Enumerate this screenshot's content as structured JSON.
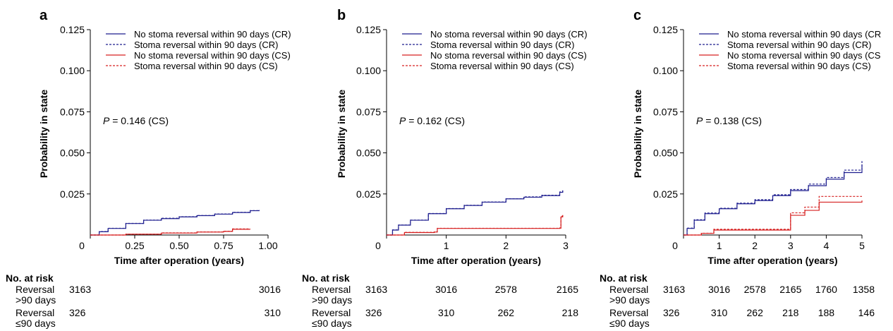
{
  "colors": {
    "cr": "#1f1f8f",
    "cs": "#d62020"
  },
  "risk_table": {
    "header": "No. at risk",
    "row1_label": [
      "Reversal",
      ">90 days"
    ],
    "row2_label": [
      "Reversal",
      "≤90 days"
    ]
  },
  "chart_data": [
    {
      "type": "line",
      "panel_label": "a",
      "xlabel": "Time after operation (years)",
      "ylabel": "Probability in state",
      "xlim": [
        0,
        1.0
      ],
      "ylim": [
        0,
        0.125
      ],
      "xticks": [
        0,
        0.25,
        0.5,
        0.75,
        1.0
      ],
      "xtick_labels": [
        "0",
        "0.25",
        "0.50",
        "0.75",
        "1.00"
      ],
      "yticks": [
        0.025,
        0.05,
        0.075,
        0.1,
        0.125
      ],
      "ytick_labels": [
        "0.025",
        "0.050",
        "0.075",
        "0.100",
        "0.125"
      ],
      "annotation": {
        "p": "P",
        "text": " = 0.146 (CS)"
      },
      "legend_position": "top",
      "series": [
        {
          "name": "No stoma reversal within 90 days (CR)",
          "color": "#1f1f8f",
          "dash": "solid",
          "x": [
            0,
            0.05,
            0.1,
            0.2,
            0.3,
            0.4,
            0.5,
            0.6,
            0.7,
            0.8,
            0.9,
            0.95
          ],
          "y": [
            0,
            0.002,
            0.004,
            0.007,
            0.009,
            0.01,
            0.011,
            0.0118,
            0.0127,
            0.0137,
            0.0148,
            0.0152
          ]
        },
        {
          "name": "Stoma reversal within 90 days (CR)",
          "color": "#1f1f8f",
          "dash": "dashed",
          "x": [
            0,
            0.05,
            0.1,
            0.2,
            0.3,
            0.4,
            0.5,
            0.6,
            0.7,
            0.8,
            0.9,
            0.95
          ],
          "y": [
            0,
            0.0021,
            0.0041,
            0.0071,
            0.0091,
            0.0102,
            0.0111,
            0.0119,
            0.0128,
            0.0138,
            0.0149,
            0.0153
          ]
        },
        {
          "name": "No stoma reversal within 90 days (CS)",
          "color": "#d62020",
          "dash": "solid",
          "x": [
            0,
            0.2,
            0.4,
            0.6,
            0.75,
            0.8,
            0.9
          ],
          "y": [
            0,
            0.0005,
            0.0012,
            0.0018,
            0.0022,
            0.0035,
            0.0035
          ]
        },
        {
          "name": "Stoma reversal within 90 days (CS)",
          "color": "#d62020",
          "dash": "dashed",
          "x": [
            0,
            0.2,
            0.4,
            0.6,
            0.75,
            0.8,
            0.9
          ],
          "y": [
            0,
            0.0005,
            0.0013,
            0.0019,
            0.0023,
            0.0037,
            0.0037
          ]
        }
      ],
      "risk": {
        "times": [
          0,
          1.0
        ],
        "row1": [
          "3163",
          "3016"
        ],
        "row2": [
          "326",
          "310"
        ]
      }
    },
    {
      "type": "line",
      "panel_label": "b",
      "xlabel": "Time after operation (years)",
      "ylabel": "Probability in state",
      "xlim": [
        0,
        3
      ],
      "ylim": [
        0,
        0.125
      ],
      "xticks": [
        0,
        1,
        2,
        3
      ],
      "xtick_labels": [
        "0",
        "1",
        "2",
        "3"
      ],
      "yticks": [
        0.025,
        0.05,
        0.075,
        0.1,
        0.125
      ],
      "ytick_labels": [
        "0.025",
        "0.050",
        "0.075",
        "0.100",
        "0.125"
      ],
      "annotation": {
        "p": "P",
        "text": " = 0.162 (CS)"
      },
      "legend_position": "top",
      "series": [
        {
          "name": "No stoma reversal within 90 days (CR)",
          "color": "#1f1f8f",
          "dash": "solid",
          "x": [
            0,
            0.1,
            0.2,
            0.4,
            0.7,
            1.0,
            1.3,
            1.6,
            2.0,
            2.3,
            2.6,
            2.9,
            2.95
          ],
          "y": [
            0,
            0.003,
            0.006,
            0.009,
            0.013,
            0.016,
            0.018,
            0.02,
            0.022,
            0.023,
            0.024,
            0.026,
            0.027
          ]
        },
        {
          "name": "Stoma reversal within 90 days (CR)",
          "color": "#1f1f8f",
          "dash": "dashed",
          "x": [
            0,
            0.1,
            0.2,
            0.4,
            0.7,
            1.0,
            1.3,
            1.6,
            2.0,
            2.3,
            2.6,
            2.9,
            2.95
          ],
          "y": [
            0,
            0.0031,
            0.0061,
            0.0091,
            0.0131,
            0.0161,
            0.0181,
            0.0201,
            0.0221,
            0.0232,
            0.0242,
            0.0262,
            0.0272
          ]
        },
        {
          "name": "No stoma reversal within 90 days (CS)",
          "color": "#d62020",
          "dash": "solid",
          "x": [
            0,
            0.3,
            0.8,
            0.85,
            2.5,
            2.9,
            2.92,
            2.95
          ],
          "y": [
            0,
            0.0015,
            0.0018,
            0.004,
            0.004,
            0.0042,
            0.011,
            0.012
          ]
        },
        {
          "name": "Stoma reversal within 90 days (CS)",
          "color": "#d62020",
          "dash": "dashed",
          "x": [
            0,
            0.3,
            0.8,
            0.85,
            2.5,
            2.9,
            2.92,
            2.95
          ],
          "y": [
            0,
            0.0016,
            0.0019,
            0.0041,
            0.0041,
            0.0043,
            0.0115,
            0.0125
          ]
        }
      ],
      "risk": {
        "times": [
          0,
          1,
          2,
          3
        ],
        "row1": [
          "3163",
          "3016",
          "2578",
          "2165"
        ],
        "row2": [
          "326",
          "310",
          "262",
          "218"
        ]
      }
    },
    {
      "type": "line",
      "panel_label": "c",
      "xlabel": "Time after operation (years)",
      "ylabel": "Probability in state",
      "xlim": [
        0,
        5
      ],
      "ylim": [
        0,
        0.125
      ],
      "xticks": [
        0,
        1,
        2,
        3,
        4,
        5
      ],
      "xtick_labels": [
        "0",
        "1",
        "2",
        "3",
        "4",
        "5"
      ],
      "yticks": [
        0.025,
        0.05,
        0.075,
        0.1,
        0.125
      ],
      "ytick_labels": [
        "0.025",
        "0.050",
        "0.075",
        "0.100",
        "0.125"
      ],
      "annotation": {
        "p": "P",
        "text": " = 0.138 (CS)"
      },
      "legend_position": "top",
      "series": [
        {
          "name": "No stoma reversal within 90 days (CR",
          "color": "#1f1f8f",
          "dash": "solid",
          "x": [
            0,
            0.1,
            0.3,
            0.6,
            1.0,
            1.5,
            2.0,
            2.5,
            3.0,
            3.5,
            4.0,
            4.5,
            5.0
          ],
          "y": [
            0,
            0.004,
            0.009,
            0.013,
            0.016,
            0.019,
            0.021,
            0.024,
            0.027,
            0.03,
            0.034,
            0.038,
            0.043
          ]
        },
        {
          "name": "Stoma reversal within 90 days (CR)",
          "color": "#1f1f8f",
          "dash": "dashed",
          "x": [
            0,
            0.1,
            0.3,
            0.6,
            1.0,
            1.5,
            2.0,
            2.5,
            3.0,
            3.5,
            4.0,
            4.5,
            5.0
          ],
          "y": [
            0,
            0.0042,
            0.0093,
            0.0134,
            0.0163,
            0.0194,
            0.0215,
            0.0245,
            0.0277,
            0.031,
            0.035,
            0.0395,
            0.045
          ]
        },
        {
          "name": "No stoma reversal within 90 days (CS",
          "color": "#d62020",
          "dash": "solid",
          "x": [
            0,
            0.5,
            0.85,
            2.9,
            3.0,
            3.4,
            3.8,
            5.0
          ],
          "y": [
            0,
            0.001,
            0.003,
            0.003,
            0.012,
            0.015,
            0.02,
            0.021
          ]
        },
        {
          "name": "Stoma reversal within 90 days (CS)",
          "color": "#d62020",
          "dash": "dashed",
          "x": [
            0,
            0.5,
            0.85,
            2.9,
            3.0,
            3.4,
            3.8,
            5.0
          ],
          "y": [
            0,
            0.0011,
            0.0035,
            0.0035,
            0.0135,
            0.017,
            0.0235,
            0.0235
          ]
        }
      ],
      "risk": {
        "times": [
          0,
          1,
          2,
          3,
          4,
          5
        ],
        "row1": [
          "3163",
          "3016",
          "2578",
          "2165",
          "1760",
          "1358"
        ],
        "row2": [
          "326",
          "310",
          "262",
          "218",
          "188",
          "146"
        ]
      }
    }
  ]
}
